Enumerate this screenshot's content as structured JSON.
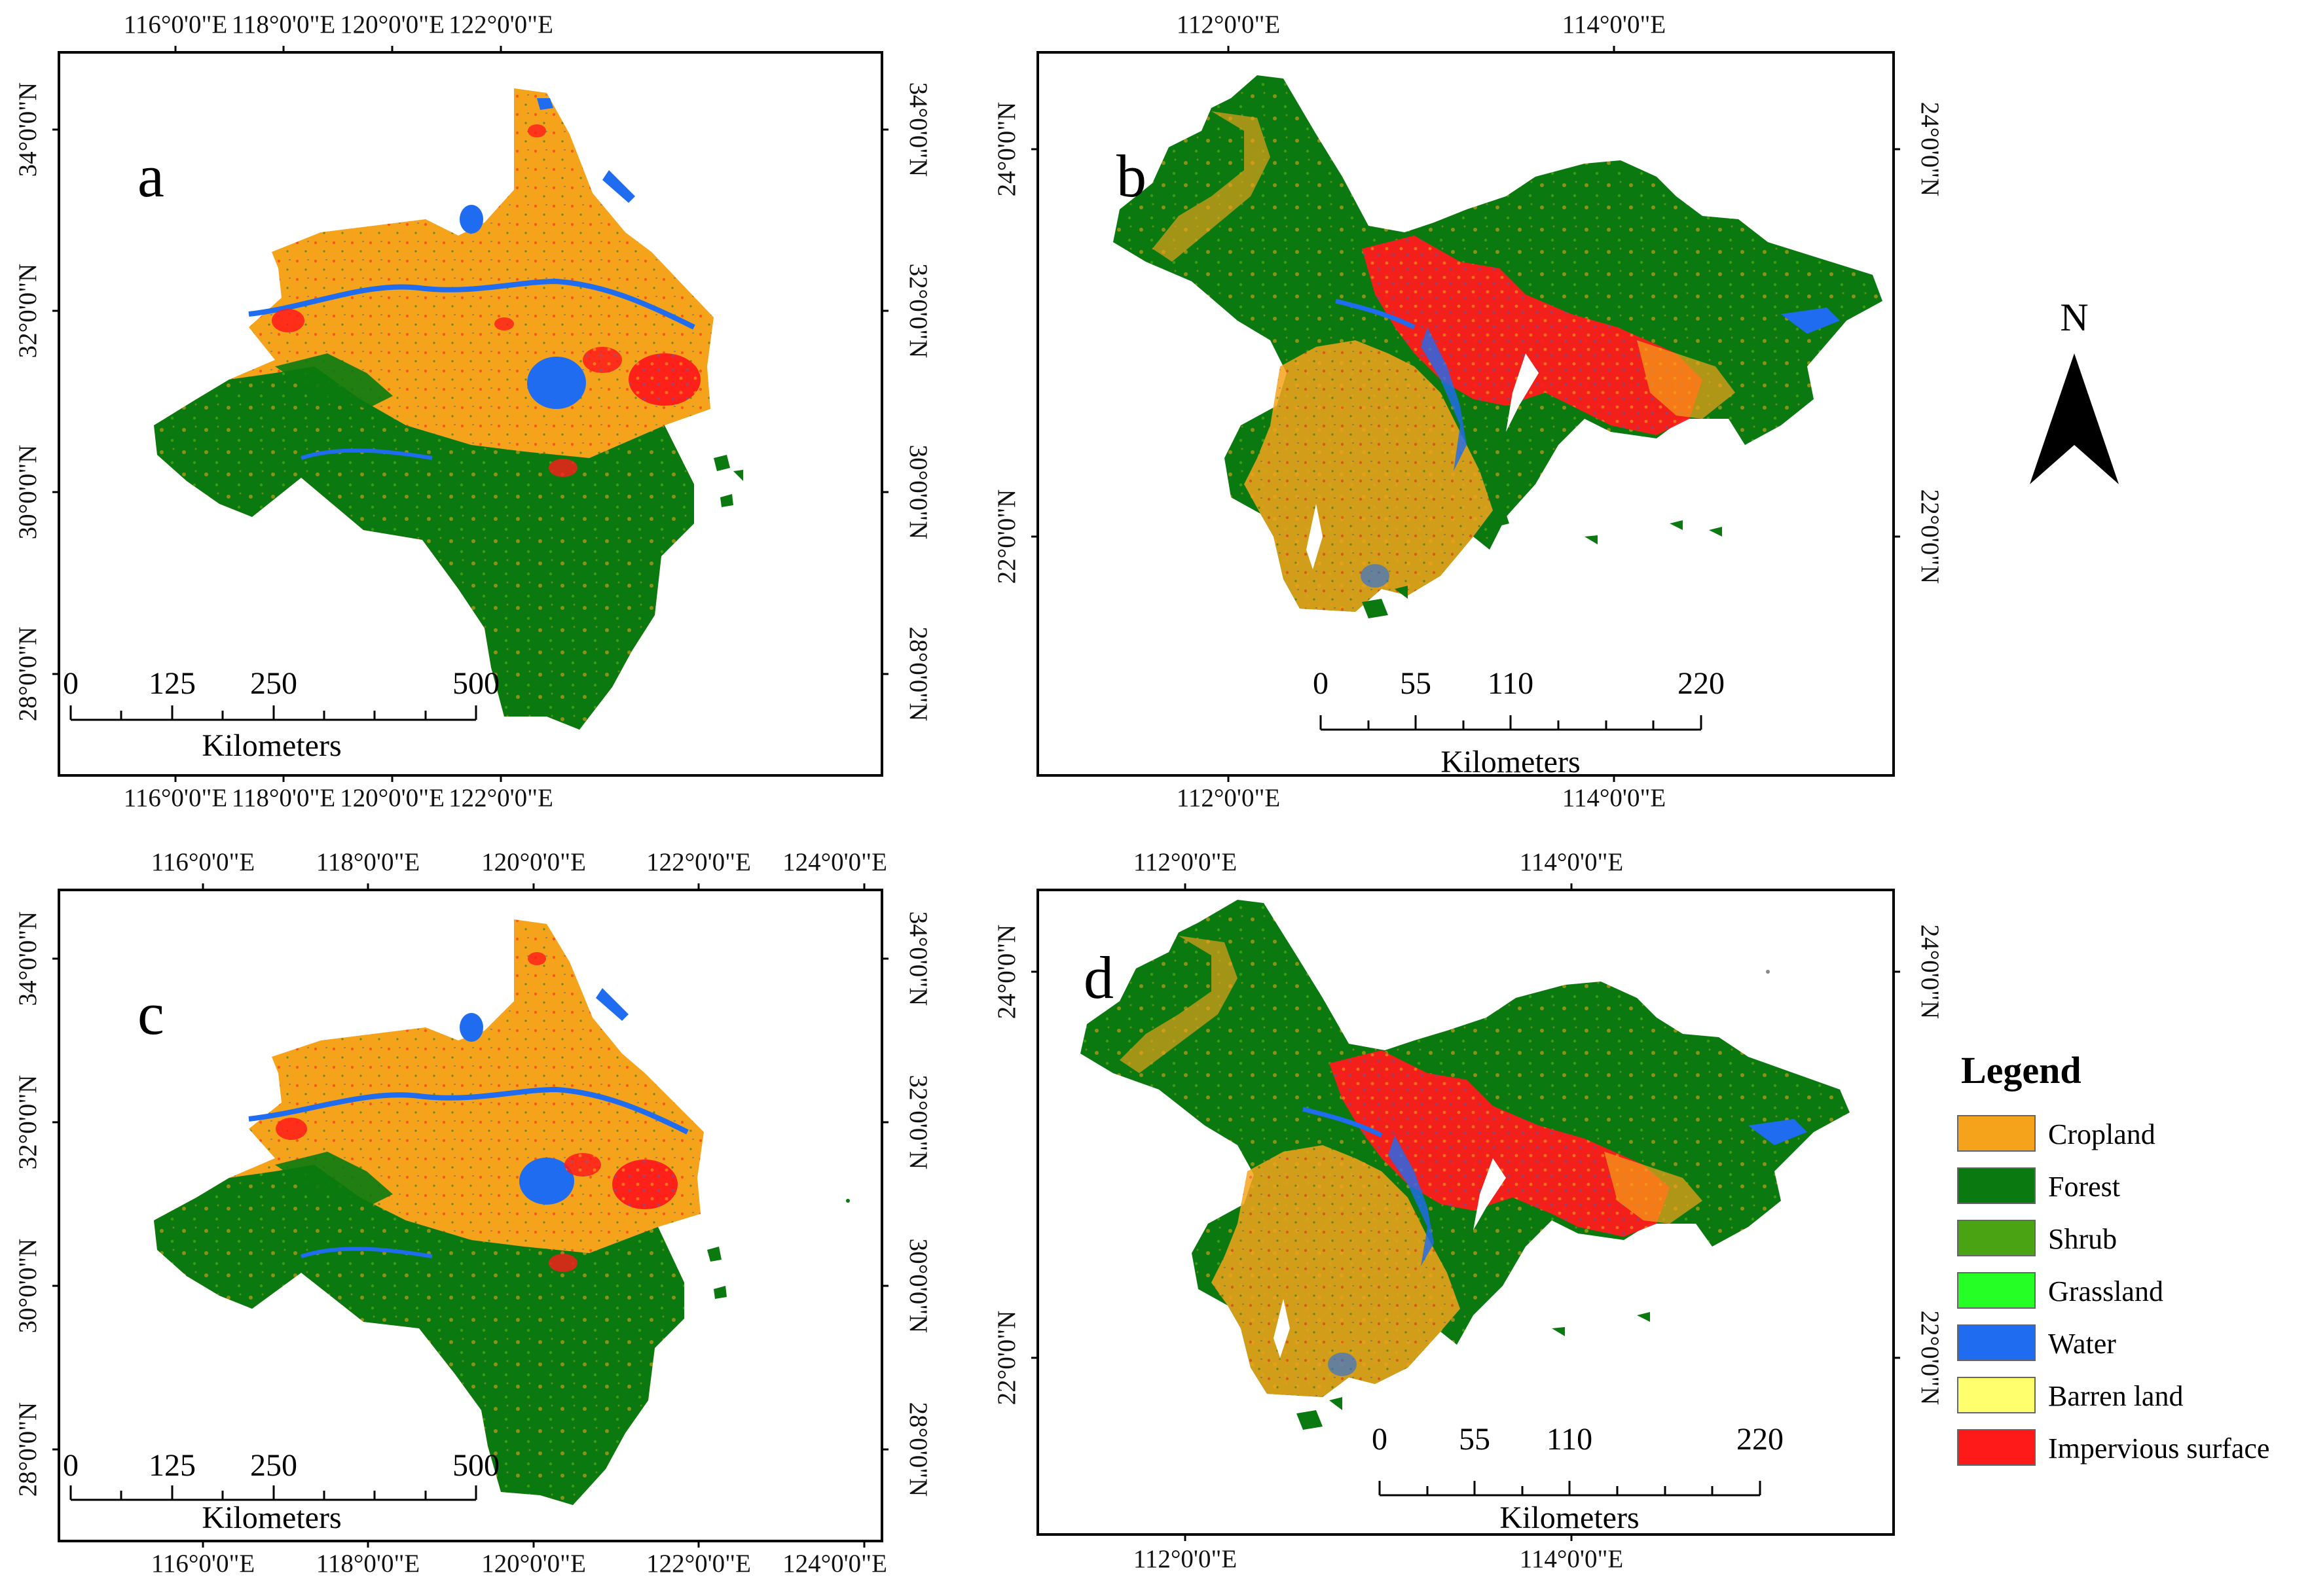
{
  "colors": {
    "cropland": "#f5a31a",
    "forest": "#0a7a10",
    "shrub": "#4aa313",
    "grassland": "#25ff25",
    "water": "#1f6cf0",
    "barren": "#ffff6e",
    "impervious": "#ff1a1a"
  },
  "north_arrow": {
    "label": "N",
    "icon": "north-arrow-icon"
  },
  "legend": {
    "title": "Legend",
    "items": [
      {
        "label": "Cropland",
        "color": "#f5a31a"
      },
      {
        "label": "Forest",
        "color": "#0a7a10"
      },
      {
        "label": "Shrub",
        "color": "#4aa313"
      },
      {
        "label": "Grassland",
        "color": "#25ff25"
      },
      {
        "label": "Water",
        "color": "#1f6cf0"
      },
      {
        "label": "Barren land",
        "color": "#ffff6e"
      },
      {
        "label": "Impervious surface",
        "color": "#ff1a1a"
      }
    ]
  },
  "panels": {
    "a": {
      "letter": "a",
      "top_lon": [
        "116°0'0\"E",
        "118°0'0\"E",
        "120°0'0\"E",
        "122°0'0\"E"
      ],
      "bottom_lon": [
        "116°0'0\"E",
        "118°0'0\"E",
        "120°0'0\"E",
        "122°0'0\"E"
      ],
      "left_lat": [
        "34°0'0\"N",
        "32°0'0\"N",
        "30°0'0\"N",
        "28°0'0\"N"
      ],
      "right_lat": [
        "34°0'0\"N",
        "32°0'0\"N",
        "30°0'0\"N",
        "28°0'0\"N"
      ],
      "scale_values": [
        "0",
        "125",
        "250",
        "500"
      ],
      "scale_unit": "Kilometers"
    },
    "b": {
      "letter": "b",
      "top_lon": [
        "112°0'0\"E",
        "114°0'0\"E"
      ],
      "bottom_lon": [
        "112°0'0\"E",
        "114°0'0\"E"
      ],
      "left_lat": [
        "24°0'0\"N",
        "22°0'0\"N"
      ],
      "right_lat": [
        "24°0'0\"N",
        "22°0'0\"N"
      ],
      "scale_values": [
        "0",
        "55",
        "110",
        "220"
      ],
      "scale_unit": "Kilometers"
    },
    "c": {
      "letter": "c",
      "top_lon": [
        "116°0'0\"E",
        "118°0'0\"E",
        "120°0'0\"E",
        "122°0'0\"E",
        "124°0'0\"E"
      ],
      "bottom_lon": [
        "116°0'0\"E",
        "118°0'0\"E",
        "120°0'0\"E",
        "122°0'0\"E",
        "124°0'0\"E"
      ],
      "left_lat": [
        "34°0'0\"N",
        "32°0'0\"N",
        "30°0'0\"N",
        "28°0'0\"N"
      ],
      "right_lat": [
        "34°0'0\"N",
        "32°0'0\"N",
        "30°0'0\"N",
        "28°0'0\"N"
      ],
      "scale_values": [
        "0",
        "125",
        "250",
        "500"
      ],
      "scale_unit": "Kilometers"
    },
    "d": {
      "letter": "d",
      "top_lon": [
        "112°0'0\"E",
        "114°0'0\"E"
      ],
      "bottom_lon": [
        "112°0'0\"E",
        "114°0'0\"E"
      ],
      "left_lat": [
        "24°0'0\"N",
        "22°0'0\"N"
      ],
      "right_lat": [
        "24°0'0\"N",
        "22°0'0\"N"
      ],
      "scale_values": [
        "0",
        "55",
        "110",
        "220"
      ],
      "scale_unit": "Kilometers"
    }
  }
}
